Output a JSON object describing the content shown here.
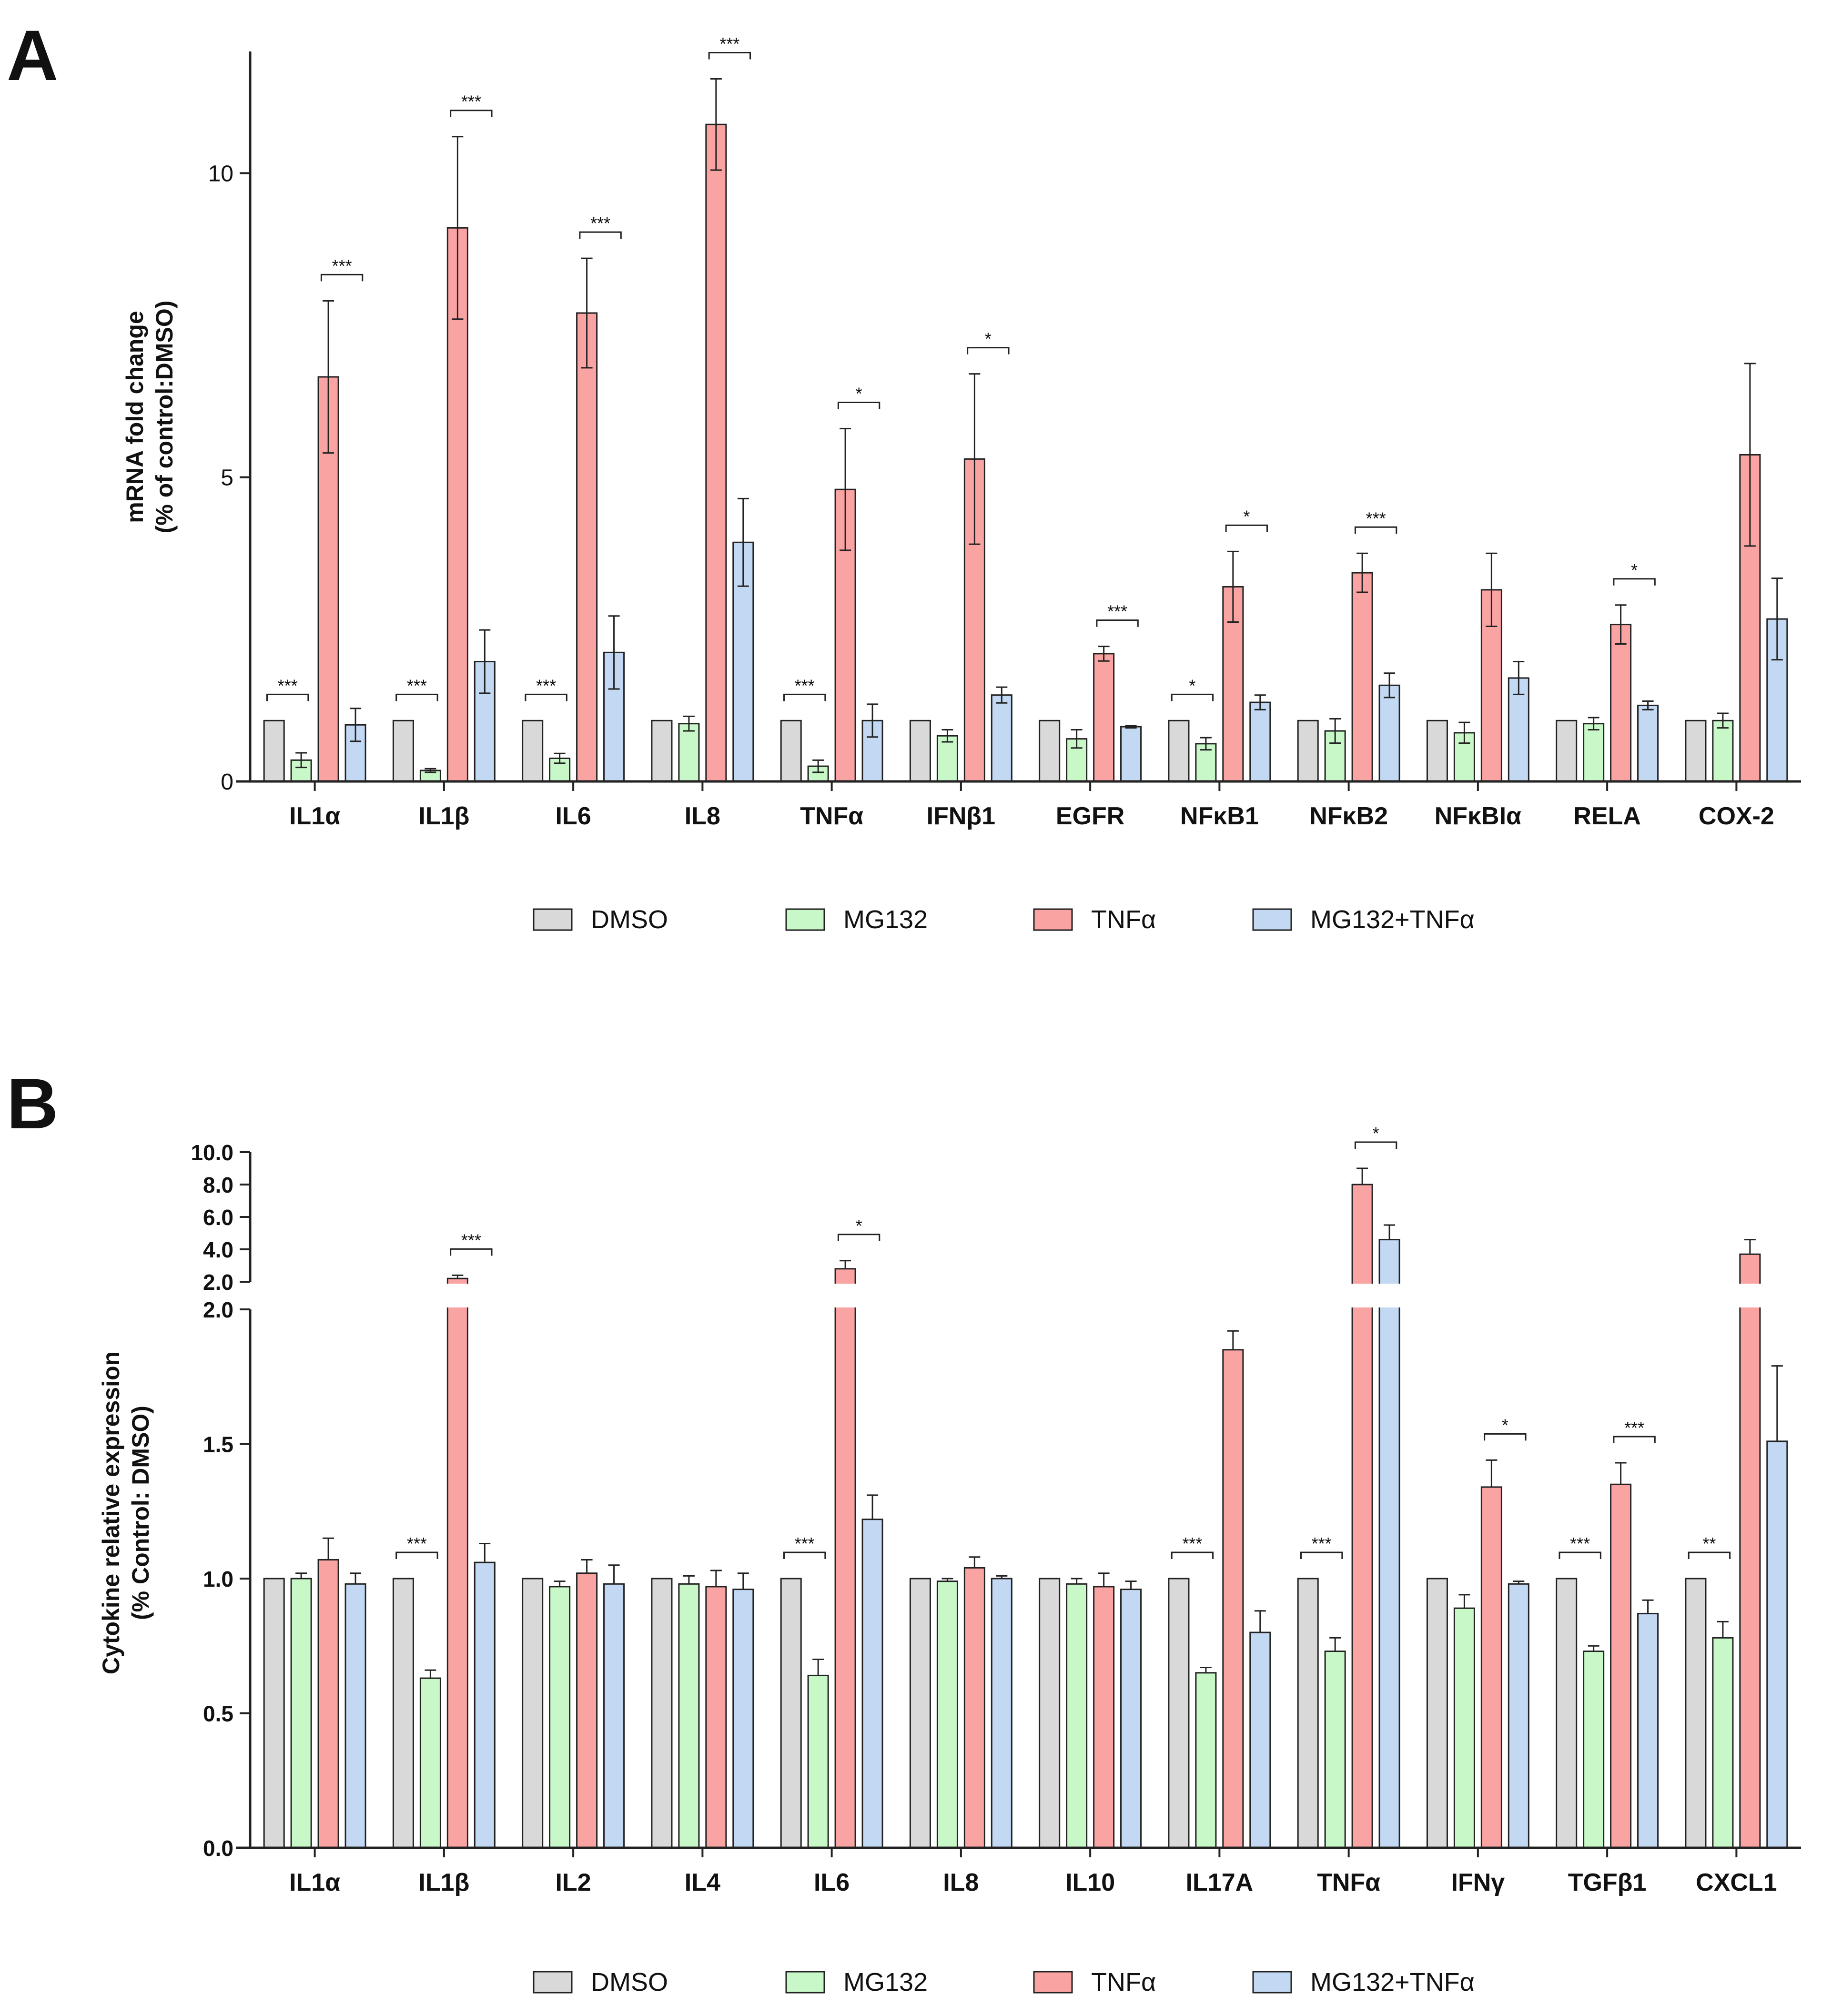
{
  "colors": {
    "DMSO": "#d9d9d9",
    "MG132": "#c8f7c8",
    "TNFa": "#f9a3a3",
    "MG132_TNFa": "#c2d8f3",
    "stroke": "#222222"
  },
  "legend": [
    "DMSO",
    "MG132",
    "TNFα",
    "MG132+TNFα"
  ],
  "chart_data": [
    {
      "panel": "A",
      "type": "bar",
      "ylabel_line1": "mRNA fold change",
      "ylabel_line2": "(% of control:DMSO)",
      "ylim": [
        0,
        12
      ],
      "yticks": [
        0,
        5,
        10
      ],
      "ytick_labels": [
        "0",
        "5",
        "10"
      ],
      "categories": [
        "IL1α",
        "IL1β",
        "IL6",
        "IL8",
        "TNFα",
        "IFNβ1",
        "EGFR",
        "NFκB1",
        "NFκB2",
        "NFκBIα",
        "RELA",
        "COX-2"
      ],
      "series": [
        {
          "name": "DMSO",
          "values": [
            1,
            1,
            1,
            1,
            1,
            1,
            1,
            1,
            1,
            1,
            1,
            1
          ],
          "errors": [
            0,
            0,
            0,
            0,
            0,
            0,
            0,
            0,
            0,
            0,
            0,
            0
          ]
        },
        {
          "name": "MG132",
          "values": [
            0.35,
            0.18,
            0.38,
            0.95,
            0.25,
            0.75,
            0.7,
            0.62,
            0.83,
            0.8,
            0.95,
            1.0
          ],
          "errors": [
            0.12,
            0.03,
            0.08,
            0.12,
            0.1,
            0.1,
            0.15,
            0.1,
            0.2,
            0.17,
            0.1,
            0.12
          ]
        },
        {
          "name": "TNFα",
          "values": [
            6.65,
            9.1,
            7.7,
            10.8,
            4.8,
            5.3,
            2.1,
            3.2,
            3.43,
            3.15,
            2.58,
            5.37
          ],
          "errors": [
            1.25,
            1.5,
            0.9,
            0.75,
            1.0,
            1.4,
            0.12,
            0.58,
            0.32,
            0.6,
            0.32,
            1.5
          ]
        },
        {
          "name": "MG132+TNFα",
          "values": [
            0.93,
            1.97,
            2.12,
            3.93,
            1.0,
            1.42,
            0.9,
            1.3,
            1.58,
            1.7,
            1.25,
            2.67
          ],
          "errors": [
            0.27,
            0.52,
            0.6,
            0.72,
            0.27,
            0.13,
            0.02,
            0.12,
            0.2,
            0.27,
            0.07,
            0.67
          ]
        }
      ],
      "significance": [
        {
          "cat": 0,
          "from": 0,
          "to": 1,
          "label": "***"
        },
        {
          "cat": 0,
          "from": 2,
          "to": 3,
          "label": "***"
        },
        {
          "cat": 1,
          "from": 0,
          "to": 1,
          "label": "***"
        },
        {
          "cat": 1,
          "from": 2,
          "to": 3,
          "label": "***"
        },
        {
          "cat": 2,
          "from": 0,
          "to": 1,
          "label": "***"
        },
        {
          "cat": 2,
          "from": 2,
          "to": 3,
          "label": "***"
        },
        {
          "cat": 3,
          "from": 2,
          "to": 3,
          "label": "***"
        },
        {
          "cat": 4,
          "from": 0,
          "to": 1,
          "label": "***"
        },
        {
          "cat": 4,
          "from": 2,
          "to": 3,
          "label": "*"
        },
        {
          "cat": 5,
          "from": 2,
          "to": 3,
          "label": "*"
        },
        {
          "cat": 6,
          "from": 2,
          "to": 3,
          "label": "***"
        },
        {
          "cat": 7,
          "from": 0,
          "to": 1,
          "label": "*"
        },
        {
          "cat": 7,
          "from": 2,
          "to": 3,
          "label": "*"
        },
        {
          "cat": 8,
          "from": 2,
          "to": 3,
          "label": "***"
        },
        {
          "cat": 10,
          "from": 2,
          "to": 3,
          "label": "*"
        }
      ]
    },
    {
      "panel": "B",
      "type": "bar",
      "ylabel_line1": "Cytokine relative expression",
      "ylabel_line2": "(% Control: DMSO)",
      "broken_axis": true,
      "ylim_lower": [
        0,
        2.0
      ],
      "ylim_upper": [
        2.0,
        10.0
      ],
      "yticks_lower": [
        "0.0",
        "0.5",
        "1.0",
        "1.5",
        "2.0"
      ],
      "yticks_upper": [
        "2.0",
        "4.0",
        "6.0",
        "8.0",
        "10.0"
      ],
      "categories": [
        "IL1α",
        "IL1β",
        "IL2",
        "IL4",
        "IL6",
        "IL8",
        "IL10",
        "IL17A",
        "TNFα",
        "IFNγ",
        "TGFβ1",
        "CXCL1"
      ],
      "series": [
        {
          "name": "DMSO",
          "values": [
            1,
            1,
            1,
            1,
            1,
            1,
            1,
            1,
            1,
            1,
            1,
            1
          ],
          "errors": [
            0,
            0,
            0,
            0,
            0,
            0,
            0,
            0,
            0,
            0,
            0,
            0
          ]
        },
        {
          "name": "MG132",
          "values": [
            1.0,
            0.63,
            0.97,
            0.98,
            0.64,
            0.99,
            0.98,
            0.65,
            0.73,
            0.89,
            0.73,
            0.78
          ],
          "errors": [
            0.02,
            0.03,
            0.02,
            0.03,
            0.06,
            0.01,
            0.02,
            0.02,
            0.05,
            0.05,
            0.02,
            0.06
          ]
        },
        {
          "name": "TNFα",
          "values": [
            1.07,
            2.2,
            1.02,
            0.97,
            2.8,
            1.04,
            0.97,
            1.85,
            8.0,
            1.34,
            1.35,
            3.7
          ],
          "errors": [
            0.08,
            0.2,
            0.05,
            0.06,
            0.5,
            0.04,
            0.05,
            0.07,
            1.0,
            0.1,
            0.08,
            0.9
          ]
        },
        {
          "name": "MG132+TNFα",
          "values": [
            0.98,
            1.06,
            0.98,
            0.96,
            1.22,
            1.0,
            0.96,
            0.8,
            4.6,
            0.98,
            0.87,
            1.51
          ],
          "errors": [
            0.04,
            0.07,
            0.07,
            0.06,
            0.09,
            0.01,
            0.03,
            0.08,
            0.9,
            0.01,
            0.05,
            0.28
          ]
        }
      ],
      "significance": [
        {
          "cat": 1,
          "from": 0,
          "to": 1,
          "label": "***"
        },
        {
          "cat": 1,
          "from": 2,
          "to": 3,
          "label": "***"
        },
        {
          "cat": 4,
          "from": 0,
          "to": 1,
          "label": "***"
        },
        {
          "cat": 4,
          "from": 2,
          "to": 3,
          "label": "*"
        },
        {
          "cat": 7,
          "from": 0,
          "to": 1,
          "label": "***"
        },
        {
          "cat": 8,
          "from": 0,
          "to": 1,
          "label": "***"
        },
        {
          "cat": 8,
          "from": 2,
          "to": 3,
          "label": "*"
        },
        {
          "cat": 9,
          "from": 2,
          "to": 3,
          "label": "*"
        },
        {
          "cat": 10,
          "from": 0,
          "to": 1,
          "label": "***"
        },
        {
          "cat": 10,
          "from": 2,
          "to": 3,
          "label": "***"
        },
        {
          "cat": 11,
          "from": 0,
          "to": 1,
          "label": "**"
        }
      ]
    }
  ]
}
